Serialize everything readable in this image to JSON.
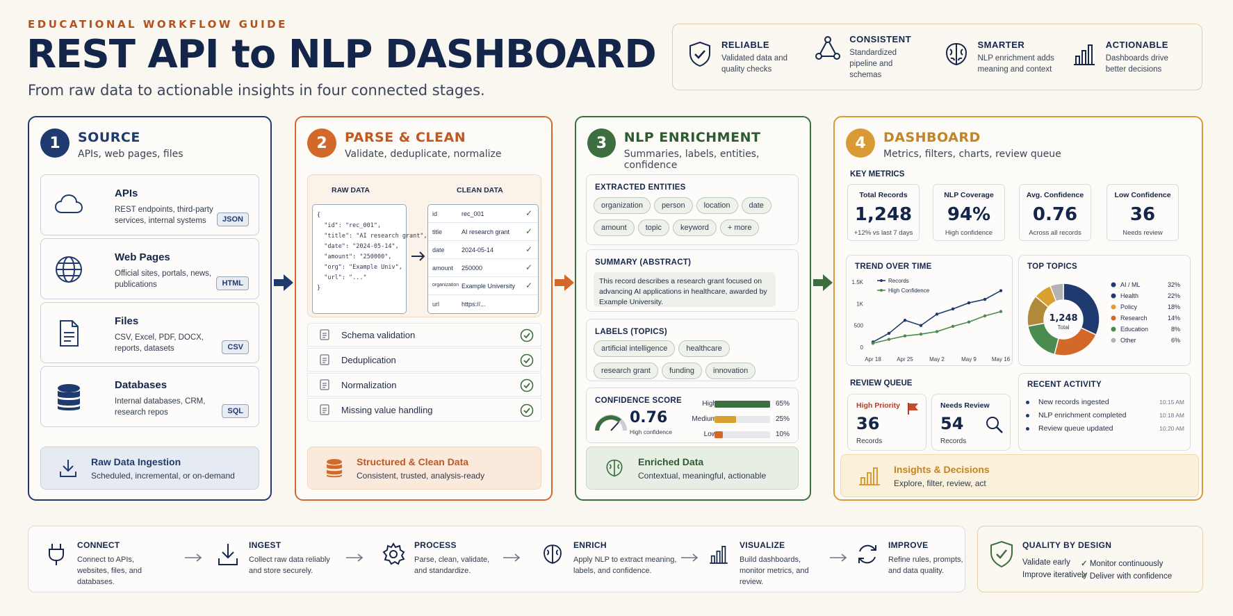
{
  "header": {
    "eyebrow": "EDUCATIONAL WORKFLOW GUIDE",
    "title": "REST API to NLP DASHBOARD",
    "subtitle": "From raw data to actionable insights in four connected stages."
  },
  "values": [
    {
      "title": "RELIABLE",
      "desc": "Validated data and quality checks",
      "icon": "shield-check-icon"
    },
    {
      "title": "CONSISTENT",
      "desc": "Standardized pipeline and schemas",
      "icon": "triangle-nodes-icon"
    },
    {
      "title": "SMARTER",
      "desc": "NLP enrichment adds meaning and context",
      "icon": "brain-icon"
    },
    {
      "title": "ACTIONABLE",
      "desc": "Dashboards drive better decisions",
      "icon": "bar-chart-icon"
    }
  ],
  "stage1": {
    "num": "1",
    "title": "SOURCE",
    "subtitle": "APIs, web pages, files",
    "items": [
      {
        "name": "APIs",
        "desc": "REST endpoints, third-party services, internal systems",
        "tag": "JSON",
        "icon": "cloud-icon"
      },
      {
        "name": "Web Pages",
        "desc": "Official sites, portals, news, publications",
        "tag": "HTML",
        "icon": "globe-icon"
      },
      {
        "name": "Files",
        "desc": "CSV, Excel, PDF, DOCX, reports, datasets",
        "tag": "CSV",
        "icon": "file-icon"
      },
      {
        "name": "Databases",
        "desc": "Internal databases, CRM, research repos",
        "tag": "SQL",
        "icon": "database-icon"
      }
    ],
    "footer": {
      "title": "Raw Data Ingestion",
      "desc": "Scheduled, incremental, or on-demand"
    }
  },
  "stage2": {
    "num": "2",
    "title": "PARSE & CLEAN",
    "subtitle": "Validate, deduplicate, normalize",
    "raw_label": "RAW DATA",
    "clean_label": "CLEAN DATA",
    "raw_lines": [
      "{",
      "  \"id\": \"rec_001\",",
      "  \"title\": \"AI research grant\",",
      "  \"date\": \"2024-05-14\",",
      "  \"amount\": \"250000\",",
      "  \"org\": \"Example Univ\",",
      "  \"url\": \"...\"",
      "}"
    ],
    "clean_rows": [
      {
        "key": "id",
        "val": "rec_001"
      },
      {
        "key": "title",
        "val": "AI research grant"
      },
      {
        "key": "date",
        "val": "2024-05-14"
      },
      {
        "key": "amount",
        "val": "250000"
      },
      {
        "key": "organization",
        "val": "Example University"
      },
      {
        "key": "url",
        "val": "https://..."
      }
    ],
    "checks": [
      "Schema validation",
      "Deduplication",
      "Normalization",
      "Missing value handling"
    ],
    "footer": {
      "title": "Structured & Clean Data",
      "desc": "Consistent, trusted, analysis-ready"
    }
  },
  "stage3": {
    "num": "3",
    "title": "NLP ENRICHMENT",
    "subtitle": "Summaries, labels, entities, confidence",
    "entities_title": "EXTRACTED ENTITIES",
    "entities": [
      "organization",
      "person",
      "location",
      "date",
      "amount",
      "topic",
      "keyword",
      "+ more"
    ],
    "summary_title": "SUMMARY (ABSTRACT)",
    "summary": "This record describes a research grant focused on advancing AI applications in healthcare, awarded by Example University.",
    "labels_title": "LABELS (TOPICS)",
    "labels": [
      "artificial intelligence",
      "healthcare",
      "research grant",
      "funding",
      "innovation"
    ],
    "confidence_title": "CONFIDENCE SCORE",
    "confidence_value": "0.76",
    "confidence_caption": "High confidence",
    "confidence_bars": [
      {
        "label": "High",
        "pct": "65%",
        "frac": 0.65,
        "color": "#3c6e3f"
      },
      {
        "label": "Medium",
        "pct": "25%",
        "frac": 0.25,
        "color": "#d9a12f"
      },
      {
        "label": "Low",
        "pct": "10%",
        "frac": 0.1,
        "color": "#d2692a"
      }
    ],
    "footer": {
      "title": "Enriched Data",
      "desc": "Contextual, meaningful, actionable"
    }
  },
  "stage4": {
    "num": "4",
    "title": "DASHBOARD",
    "subtitle": "Metrics, filters, charts, review queue",
    "key_metrics_title": "KEY METRICS",
    "metrics": [
      {
        "label": "Total Records",
        "value": "1,248",
        "sub": "+12% vs last 7 days"
      },
      {
        "label": "NLP Coverage",
        "value": "94%",
        "sub": "High confidence"
      },
      {
        "label": "Avg. Confidence",
        "value": "0.76",
        "sub": "Across all records"
      },
      {
        "label": "Low Confidence",
        "value": "36",
        "sub": "Needs review"
      }
    ],
    "trend_title": "TREND OVER TIME",
    "topics_title": "TOP TOPICS",
    "donut_value": "1,248",
    "donut_label": "Total",
    "review_title": "REVIEW QUEUE",
    "review": [
      {
        "label": "High Priority",
        "value": "36",
        "sub": "Records"
      },
      {
        "label": "Needs Review",
        "value": "54",
        "sub": "Records"
      }
    ],
    "activity_title": "RECENT ACTIVITY",
    "activity": [
      {
        "text": "New records ingested",
        "time": "10:15 AM"
      },
      {
        "text": "NLP enrichment completed",
        "time": "10:18 AM"
      },
      {
        "text": "Review queue updated",
        "time": "10:20 AM"
      }
    ],
    "footer": {
      "title": "Insights & Decisions",
      "desc": "Explore, filter, review, act"
    }
  },
  "chart_data": [
    {
      "type": "line",
      "x": [
        "Apr 18",
        "Apr 25",
        "May 2",
        "May 9",
        "May 16"
      ],
      "xlabel": "",
      "ylabel": "",
      "y_ticks": [
        "0",
        "500",
        "1K",
        "1.5K"
      ],
      "ylim": [
        0,
        1500
      ],
      "series": [
        {
          "name": "Records",
          "color": "#1e3a6e",
          "x": [
            0,
            0.5,
            1,
            1.5,
            2,
            2.5,
            3,
            3.5,
            4
          ],
          "values": [
            120,
            320,
            620,
            500,
            760,
            880,
            1020,
            1100,
            1300
          ]
        },
        {
          "name": "High Confidence",
          "color": "#4a8b4f",
          "x": [
            0,
            0.5,
            1,
            1.5,
            2,
            2.5,
            3,
            3.5,
            4
          ],
          "values": [
            90,
            180,
            260,
            300,
            360,
            480,
            580,
            720,
            820
          ]
        }
      ],
      "legend": "top-left"
    },
    {
      "type": "pie",
      "title": "",
      "categories": [
        "AI / ML",
        "Health",
        "Policy",
        "Research",
        "Education",
        "Other"
      ],
      "values": [
        32,
        22,
        18,
        14,
        8,
        6
      ],
      "labels": [
        "32%",
        "22%",
        "18%",
        "14%",
        "8%",
        "6%"
      ],
      "colors": [
        "#1e3a6e",
        "#d2692a",
        "#4a8b4f",
        "#b08a3a",
        "#d9a12f",
        "#b3b3b3"
      ],
      "legend_colors": [
        "#1e3a6e",
        "#1e3a6e",
        "#d9a12f",
        "#d2692a",
        "#4a8b4f",
        "#b3b3b3"
      ],
      "legend": "right"
    }
  ],
  "bottom_steps": [
    {
      "title": "CONNECT",
      "desc": "Connect to APIs, websites, files, and databases.",
      "icon": "plug-icon"
    },
    {
      "title": "INGEST",
      "desc": "Collect raw data reliably and store securely.",
      "icon": "download-icon"
    },
    {
      "title": "PROCESS",
      "desc": "Parse, clean, validate, and standardize.",
      "icon": "gear-icon"
    },
    {
      "title": "ENRICH",
      "desc": "Apply NLP to extract meaning, labels, and confidence.",
      "icon": "brain-icon"
    },
    {
      "title": "VISUALIZE",
      "desc": "Build dashboards, monitor metrics, and review.",
      "icon": "bar-chart-icon"
    },
    {
      "title": "IMPROVE",
      "desc": "Refine rules, prompts, and data quality.",
      "icon": "refresh-icon"
    }
  ],
  "quality": {
    "title": "QUALITY BY DESIGN",
    "items": [
      "Validate early",
      "Monitor continuously",
      "Improve iteratively",
      "Deliver with confidence"
    ]
  }
}
